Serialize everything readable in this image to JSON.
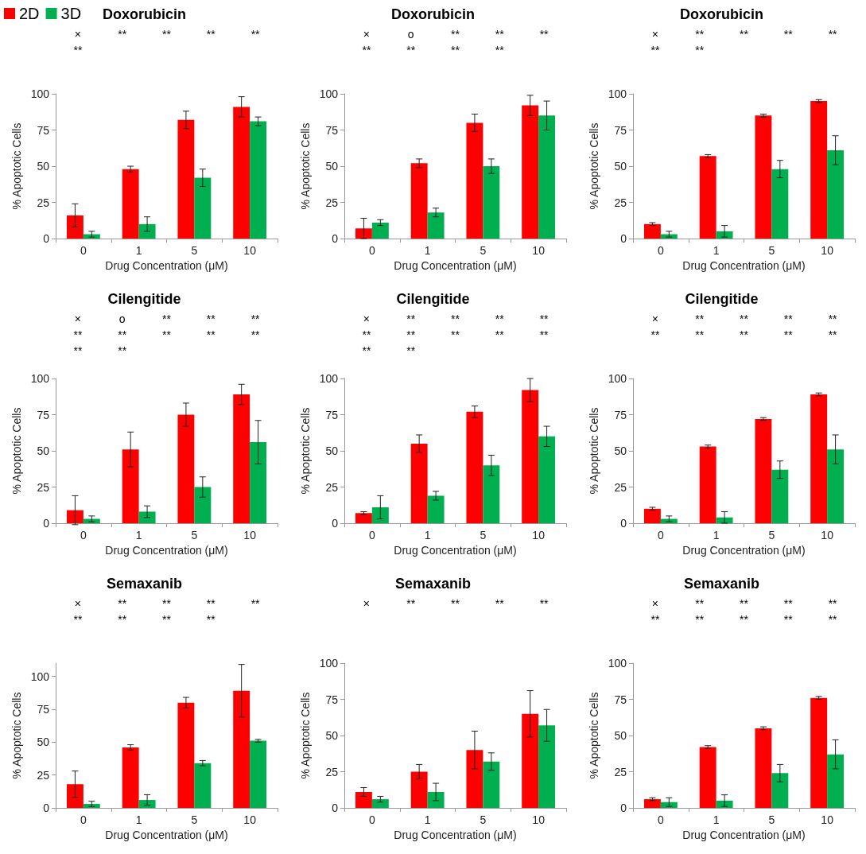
{
  "chart_data": [
    {
      "type": "bar",
      "title": "Doxorubicin",
      "xlabel": "Drug Concentration (μM)",
      "ylabel": "% Apoptotic Cells",
      "categories": [
        "0",
        "1",
        "5",
        "10"
      ],
      "ylim": [
        0,
        100
      ],
      "yticks": [
        0,
        25,
        50,
        75,
        100
      ],
      "legend": "top left",
      "grid": false,
      "series": [
        {
          "name": "2D",
          "color": "#ff0000",
          "values": [
            16,
            48,
            82,
            91
          ],
          "errors": [
            8,
            2,
            6,
            7
          ]
        },
        {
          "name": "3D",
          "color": "#00b050",
          "values": [
            3,
            10,
            42,
            81
          ],
          "errors": [
            2,
            5,
            6,
            3
          ]
        }
      ],
      "annotations": [
        "×",
        "**",
        "**",
        "**",
        "**",
        "**"
      ]
    },
    {
      "type": "bar",
      "title": "Doxorubicin",
      "xlabel": "Drug Concentration (μM)",
      "ylabel": "% Apoptotic Cells",
      "categories": [
        "0",
        "1",
        "5",
        "10"
      ],
      "ylim": [
        0,
        100
      ],
      "yticks": [
        0,
        25,
        50,
        75,
        100
      ],
      "grid": false,
      "series": [
        {
          "color": "#ff0000",
          "values": [
            7,
            52,
            80,
            92
          ],
          "errors": [
            7,
            3,
            6,
            7
          ]
        },
        {
          "color": "#00b050",
          "values": [
            11,
            18,
            50,
            85
          ],
          "errors": [
            2,
            3,
            5,
            10
          ]
        }
      ],
      "annotations": [
        "×",
        "o",
        "**",
        "**",
        "**",
        "**",
        "**",
        "**",
        "**"
      ]
    },
    {
      "type": "bar",
      "title": "Doxorubicin",
      "xlabel": "Drug Concentration (μM)",
      "ylabel": "% Apoptotic Cells",
      "categories": [
        "0",
        "1",
        "5",
        "10"
      ],
      "ylim": [
        0,
        100
      ],
      "yticks": [
        0,
        25,
        50,
        75,
        100
      ],
      "grid": false,
      "series": [
        {
          "color": "#ff0000",
          "values": [
            10,
            57,
            85,
            95
          ],
          "errors": [
            1,
            1,
            1,
            1
          ]
        },
        {
          "color": "#00b050",
          "values": [
            3,
            5,
            48,
            61
          ],
          "errors": [
            2,
            4,
            6,
            10
          ]
        }
      ],
      "annotations": [
        "×",
        "**",
        "**",
        "**",
        "**",
        "**",
        "**"
      ]
    },
    {
      "type": "bar",
      "title": "Cilengitide",
      "xlabel": "Drug Concentration (μM)",
      "ylabel": "% Apoptotic Cells",
      "categories": [
        "0",
        "1",
        "5",
        "10"
      ],
      "ylim": [
        0,
        100
      ],
      "yticks": [
        0,
        25,
        50,
        75,
        100
      ],
      "grid": false,
      "series": [
        {
          "color": "#ff0000",
          "values": [
            9,
            51,
            75,
            89
          ],
          "errors": [
            10,
            12,
            8,
            7
          ]
        },
        {
          "color": "#00b050",
          "values": [
            3,
            8,
            25,
            56
          ],
          "errors": [
            2,
            4,
            7,
            15
          ]
        }
      ],
      "annotations": [
        "×",
        "o",
        "**",
        "**",
        "**",
        "**",
        "**",
        "**",
        "**",
        "**",
        "**",
        "**"
      ]
    },
    {
      "type": "bar",
      "title": "Cilengitide",
      "xlabel": "Drug Concentration (μM)",
      "ylabel": "% Apoptotic Cells",
      "categories": [
        "0",
        "1",
        "5",
        "10"
      ],
      "ylim": [
        0,
        100
      ],
      "yticks": [
        0,
        25,
        50,
        75,
        100
      ],
      "grid": false,
      "series": [
        {
          "color": "#ff0000",
          "values": [
            7,
            55,
            77,
            92
          ],
          "errors": [
            1,
            6,
            4,
            8
          ]
        },
        {
          "color": "#00b050",
          "values": [
            11,
            19,
            40,
            60
          ],
          "errors": [
            8,
            3,
            7,
            7
          ]
        }
      ],
      "annotations": [
        "×",
        "**",
        "**",
        "**",
        "**",
        "**",
        "**",
        "**",
        "**",
        "**",
        "**",
        "**"
      ]
    },
    {
      "type": "bar",
      "title": "Cilengitide",
      "xlabel": "Drug Concentration (μM)",
      "ylabel": "% Apoptotic Cells",
      "categories": [
        "0",
        "1",
        "5",
        "10"
      ],
      "ylim": [
        0,
        100
      ],
      "yticks": [
        0,
        25,
        50,
        75,
        100
      ],
      "grid": false,
      "series": [
        {
          "color": "#ff0000",
          "values": [
            10,
            53,
            72,
            89
          ],
          "errors": [
            1,
            1,
            1,
            1
          ]
        },
        {
          "color": "#00b050",
          "values": [
            3,
            4,
            37,
            51
          ],
          "errors": [
            2,
            4,
            6,
            10
          ]
        }
      ],
      "annotations": [
        "×",
        "**",
        "**",
        "**",
        "**",
        "**",
        "**",
        "**",
        "**",
        "**"
      ]
    },
    {
      "type": "bar",
      "title": "Semaxanib",
      "xlabel": "Drug Concentration (μM)",
      "ylabel": "% Apoptotic Cells",
      "categories": [
        "0",
        "1",
        "5",
        "10"
      ],
      "ylim": [
        0,
        110
      ],
      "yticks": [
        0,
        25,
        50,
        75,
        100
      ],
      "grid": false,
      "series": [
        {
          "color": "#ff0000",
          "values": [
            18,
            46,
            80,
            89
          ],
          "errors": [
            10,
            2,
            4,
            20
          ]
        },
        {
          "color": "#00b050",
          "values": [
            3,
            6,
            34,
            51
          ],
          "errors": [
            2,
            4,
            2,
            1
          ]
        }
      ],
      "annotations": [
        "×",
        "**",
        "**",
        "**",
        "**",
        "**",
        "**",
        "**",
        "**"
      ]
    },
    {
      "type": "bar",
      "title": "Semaxanib",
      "xlabel": "Drug Concentration (μM)",
      "ylabel": "% Apoptotic Cells",
      "categories": [
        "0",
        "1",
        "5",
        "10"
      ],
      "ylim": [
        0,
        100
      ],
      "yticks": [
        0,
        25,
        50,
        75,
        100
      ],
      "grid": false,
      "series": [
        {
          "color": "#ff0000",
          "values": [
            11,
            25,
            40,
            65
          ],
          "errors": [
            3,
            5,
            13,
            16
          ]
        },
        {
          "color": "#00b050",
          "values": [
            6,
            11,
            32,
            57
          ],
          "errors": [
            2,
            6,
            6,
            11
          ]
        }
      ],
      "annotations": [
        "×",
        "**",
        "**",
        "**",
        "**"
      ]
    },
    {
      "type": "bar",
      "title": "Semaxanib",
      "xlabel": "Drug Concentration (μM)",
      "ylabel": "% Apoptotic Cells",
      "categories": [
        "0",
        "1",
        "5",
        "10"
      ],
      "ylim": [
        0,
        100
      ],
      "yticks": [
        0,
        25,
        50,
        75,
        100
      ],
      "grid": false,
      "series": [
        {
          "color": "#ff0000",
          "values": [
            6,
            42,
            55,
            76
          ],
          "errors": [
            1,
            1,
            1,
            1
          ]
        },
        {
          "color": "#00b050",
          "values": [
            4,
            5,
            24,
            37
          ],
          "errors": [
            3,
            4,
            6,
            10
          ]
        }
      ],
      "annotations": [
        "×",
        "**",
        "**",
        "**",
        "**",
        "**",
        "**",
        "**",
        "**",
        "**"
      ]
    }
  ]
}
